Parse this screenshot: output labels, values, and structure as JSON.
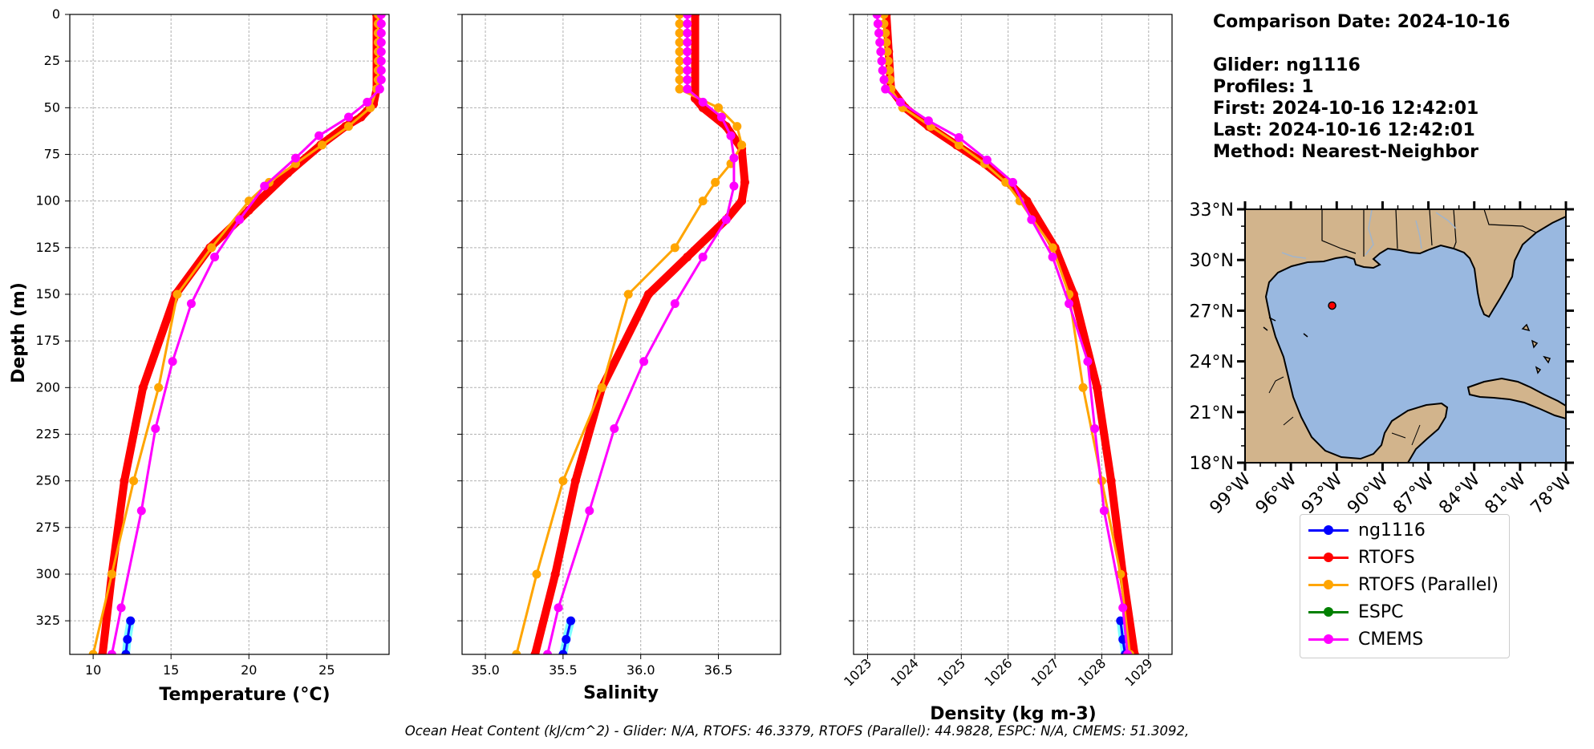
{
  "info": {
    "comparison_date": "Comparison Date: 2024-10-16",
    "glider": "Glider: ng1116",
    "profiles": "Profiles: 1",
    "first": "First: 2024-10-16 12:42:01",
    "last": "Last: 2024-10-16 12:42:01",
    "method": "Method: Nearest-Neighbor"
  },
  "footer": "Ocean Heat Content (kJ/cm^2) - Glider: N/A,  RTOFS: 46.3379,  RTOFS (Parallel): 44.9828,  ESPC: N/A,  CMEMS: 51.3092,",
  "legend": [
    {
      "label": "ng1116",
      "color": "#0000ff"
    },
    {
      "label": "RTOFS",
      "color": "#ff0000"
    },
    {
      "label": "RTOFS (Parallel)",
      "color": "#ffa500"
    },
    {
      "label": "ESPC",
      "color": "#008000"
    },
    {
      "label": "CMEMS",
      "color": "#ff00ff"
    }
  ],
  "chart_data": [
    {
      "type": "line",
      "xlabel": "Temperature (°C)",
      "ylabel": "Depth (m)",
      "xlim": [
        8.5,
        29
      ],
      "ylim": [
        343,
        0
      ],
      "xticks": [
        10,
        15,
        20,
        25
      ],
      "yticks": [
        0,
        25,
        50,
        75,
        100,
        125,
        150,
        175,
        200,
        225,
        250,
        275,
        300,
        325
      ],
      "grid": true,
      "series": [
        {
          "name": "ng1116",
          "color": "#0000ff",
          "points": [
            [
              12.4,
              325
            ],
            [
              12.2,
              335
            ],
            [
              12.1,
              343
            ]
          ]
        },
        {
          "name": "RTOFS",
          "color": "#ff0000",
          "width": 10,
          "markers": false,
          "points": [
            [
              28.2,
              0
            ],
            [
              28.2,
              40
            ],
            [
              28.0,
              48
            ],
            [
              27.2,
              55
            ],
            [
              26.2,
              60
            ],
            [
              24.6,
              70
            ],
            [
              22.5,
              85
            ],
            [
              20.0,
              105
            ],
            [
              17.5,
              125
            ],
            [
              15.3,
              150
            ],
            [
              13.2,
              200
            ],
            [
              12.0,
              250
            ],
            [
              11.2,
              300
            ],
            [
              10.6,
              343
            ]
          ]
        },
        {
          "name": "RTOFS (Parallel)",
          "color": "#ffa500",
          "width": 3,
          "points": [
            [
              28.3,
              0
            ],
            [
              28.3,
              5
            ],
            [
              28.3,
              10
            ],
            [
              28.3,
              15
            ],
            [
              28.3,
              20
            ],
            [
              28.3,
              25
            ],
            [
              28.3,
              30
            ],
            [
              28.3,
              35
            ],
            [
              28.2,
              40
            ],
            [
              27.8,
              50
            ],
            [
              26.4,
              60
            ],
            [
              24.7,
              70
            ],
            [
              23.0,
              80
            ],
            [
              21.3,
              90
            ],
            [
              20.0,
              100
            ],
            [
              17.6,
              125
            ],
            [
              15.4,
              150
            ],
            [
              14.2,
              200
            ],
            [
              12.6,
              250
            ],
            [
              11.2,
              300
            ],
            [
              10.0,
              343
            ]
          ]
        },
        {
          "name": "CMEMS",
          "color": "#ff00ff",
          "width": 3,
          "points": [
            [
              28.5,
              0
            ],
            [
              28.5,
              5
            ],
            [
              28.5,
              10
            ],
            [
              28.5,
              15
            ],
            [
              28.5,
              20
            ],
            [
              28.5,
              25
            ],
            [
              28.5,
              30
            ],
            [
              28.5,
              35
            ],
            [
              28.4,
              40
            ],
            [
              27.6,
              47
            ],
            [
              26.4,
              55
            ],
            [
              24.5,
              65
            ],
            [
              23.0,
              77
            ],
            [
              21.0,
              92
            ],
            [
              19.4,
              110
            ],
            [
              17.8,
              130
            ],
            [
              16.3,
              155
            ],
            [
              15.1,
              186
            ],
            [
              14.0,
              222
            ],
            [
              13.1,
              266
            ],
            [
              11.8,
              318
            ],
            [
              11.2,
              343
            ]
          ]
        }
      ]
    },
    {
      "type": "line",
      "xlabel": "Salinity",
      "xlim": [
        34.85,
        36.9
      ],
      "ylim": [
        343,
        0
      ],
      "xticks": [
        35.0,
        35.5,
        36.0,
        36.5
      ],
      "yticks": [
        0,
        25,
        50,
        75,
        100,
        125,
        150,
        175,
        200,
        225,
        250,
        275,
        300,
        325
      ],
      "grid": true,
      "series": [
        {
          "name": "ng1116",
          "color": "#0000ff",
          "points": [
            [
              35.55,
              325
            ],
            [
              35.52,
              335
            ],
            [
              35.5,
              343
            ]
          ]
        },
        {
          "name": "RTOFS",
          "color": "#ff0000",
          "width": 10,
          "markers": false,
          "points": [
            [
              36.35,
              0
            ],
            [
              36.35,
              45
            ],
            [
              36.4,
              50
            ],
            [
              36.55,
              60
            ],
            [
              36.65,
              72
            ],
            [
              36.67,
              90
            ],
            [
              36.65,
              100
            ],
            [
              36.55,
              110
            ],
            [
              36.3,
              130
            ],
            [
              36.05,
              150
            ],
            [
              35.75,
              200
            ],
            [
              35.58,
              250
            ],
            [
              35.45,
              300
            ],
            [
              35.32,
              343
            ]
          ]
        },
        {
          "name": "RTOFS (Parallel)",
          "color": "#ffa500",
          "width": 3,
          "points": [
            [
              36.25,
              0
            ],
            [
              36.25,
              5
            ],
            [
              36.25,
              10
            ],
            [
              36.25,
              15
            ],
            [
              36.25,
              20
            ],
            [
              36.25,
              25
            ],
            [
              36.25,
              30
            ],
            [
              36.25,
              35
            ],
            [
              36.25,
              40
            ],
            [
              36.5,
              50
            ],
            [
              36.62,
              60
            ],
            [
              36.65,
              70
            ],
            [
              36.58,
              80
            ],
            [
              36.48,
              90
            ],
            [
              36.4,
              100
            ],
            [
              36.22,
              125
            ],
            [
              35.92,
              150
            ],
            [
              35.75,
              200
            ],
            [
              35.5,
              250
            ],
            [
              35.33,
              300
            ],
            [
              35.2,
              343
            ]
          ]
        },
        {
          "name": "CMEMS",
          "color": "#ff00ff",
          "width": 3,
          "points": [
            [
              36.3,
              0
            ],
            [
              36.3,
              5
            ],
            [
              36.3,
              10
            ],
            [
              36.3,
              15
            ],
            [
              36.3,
              20
            ],
            [
              36.3,
              25
            ],
            [
              36.3,
              30
            ],
            [
              36.3,
              35
            ],
            [
              36.3,
              40
            ],
            [
              36.4,
              47
            ],
            [
              36.52,
              55
            ],
            [
              36.58,
              65
            ],
            [
              36.6,
              77
            ],
            [
              36.6,
              92
            ],
            [
              36.55,
              110
            ],
            [
              36.4,
              130
            ],
            [
              36.22,
              155
            ],
            [
              36.02,
              186
            ],
            [
              35.83,
              222
            ],
            [
              35.67,
              266
            ],
            [
              35.47,
              318
            ],
            [
              35.4,
              343
            ]
          ]
        }
      ]
    },
    {
      "type": "line",
      "xlabel": "Density (kg m-3)",
      "xlim": [
        1022.7,
        1029.5
      ],
      "ylim": [
        343,
        0
      ],
      "xticks": [
        1023,
        1024,
        1025,
        1026,
        1027,
        1028,
        1029
      ],
      "yticks": [
        0,
        25,
        50,
        75,
        100,
        125,
        150,
        175,
        200,
        225,
        250,
        275,
        300,
        325
      ],
      "grid": true,
      "series": [
        {
          "name": "ng1116",
          "color": "#0000ff",
          "points": [
            [
              1028.4,
              325
            ],
            [
              1028.45,
              335
            ],
            [
              1028.5,
              343
            ]
          ]
        },
        {
          "name": "RTOFS",
          "color": "#ff0000",
          "width": 10,
          "markers": false,
          "points": [
            [
              1023.4,
              0
            ],
            [
              1023.45,
              20
            ],
            [
              1023.5,
              40
            ],
            [
              1023.8,
              50
            ],
            [
              1024.3,
              60
            ],
            [
              1024.9,
              70
            ],
            [
              1025.5,
              80
            ],
            [
              1026.0,
              90
            ],
            [
              1026.4,
              100
            ],
            [
              1027.0,
              125
            ],
            [
              1027.4,
              150
            ],
            [
              1027.9,
              200
            ],
            [
              1028.2,
              250
            ],
            [
              1028.45,
              300
            ],
            [
              1028.7,
              343
            ]
          ]
        },
        {
          "name": "RTOFS (Parallel)",
          "color": "#ffa500",
          "width": 3,
          "points": [
            [
              1023.35,
              0
            ],
            [
              1023.35,
              5
            ],
            [
              1023.38,
              10
            ],
            [
              1023.4,
              15
            ],
            [
              1023.42,
              20
            ],
            [
              1023.44,
              25
            ],
            [
              1023.46,
              30
            ],
            [
              1023.48,
              35
            ],
            [
              1023.5,
              40
            ],
            [
              1023.75,
              50
            ],
            [
              1024.35,
              60
            ],
            [
              1024.95,
              70
            ],
            [
              1025.5,
              80
            ],
            [
              1025.95,
              90
            ],
            [
              1026.25,
              100
            ],
            [
              1026.95,
              125
            ],
            [
              1027.3,
              150
            ],
            [
              1027.6,
              200
            ],
            [
              1028.0,
              250
            ],
            [
              1028.4,
              300
            ],
            [
              1028.6,
              343
            ]
          ]
        },
        {
          "name": "CMEMS",
          "color": "#ff00ff",
          "width": 3,
          "points": [
            [
              1023.2,
              0
            ],
            [
              1023.22,
              5
            ],
            [
              1023.24,
              10
            ],
            [
              1023.26,
              15
            ],
            [
              1023.28,
              20
            ],
            [
              1023.3,
              25
            ],
            [
              1023.32,
              30
            ],
            [
              1023.35,
              35
            ],
            [
              1023.38,
              40
            ],
            [
              1023.7,
              47
            ],
            [
              1024.3,
              57
            ],
            [
              1024.95,
              66
            ],
            [
              1025.55,
              78
            ],
            [
              1026.1,
              90
            ],
            [
              1026.5,
              110
            ],
            [
              1026.95,
              130
            ],
            [
              1027.3,
              155
            ],
            [
              1027.7,
              186
            ],
            [
              1027.85,
              222
            ],
            [
              1028.05,
              266
            ],
            [
              1028.45,
              318
            ],
            [
              1028.55,
              343
            ]
          ]
        }
      ]
    }
  ],
  "map": {
    "lat_ticks": [
      "33°N",
      "30°N",
      "27°N",
      "24°N",
      "21°N",
      "18°N"
    ],
    "lon_ticks": [
      "99°W",
      "96°W",
      "93°W",
      "90°W",
      "87°W",
      "84°W",
      "81°W",
      "78°W"
    ],
    "lat_range": [
      18,
      33
    ],
    "lon_range": [
      -99,
      -78
    ],
    "glider_location": [
      -93.3,
      27.3
    ],
    "land_color": "#d2b48c",
    "ocean_color": "#99b8e0"
  }
}
